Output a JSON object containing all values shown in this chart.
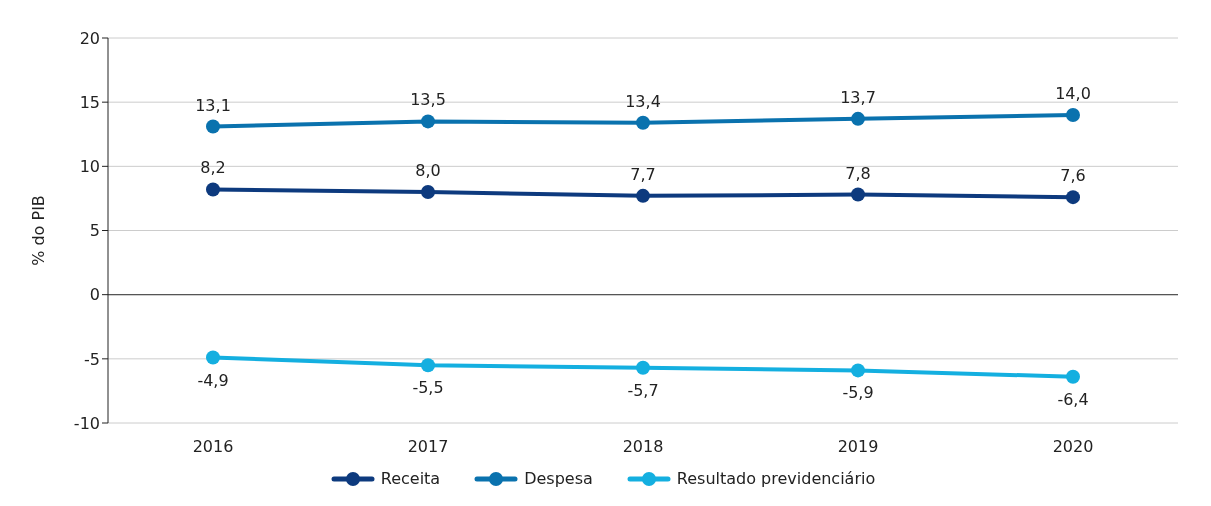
{
  "chart_data": {
    "type": "line",
    "ylabel": "% do PIB",
    "categories": [
      "2016",
      "2017",
      "2018",
      "2019",
      "2020"
    ],
    "series": [
      {
        "name": "Receita",
        "color": "#0d3a7e",
        "values": [
          8.2,
          8.0,
          7.7,
          7.8,
          7.6
        ],
        "value_labels": [
          "8,2",
          "8,0",
          "7,7",
          "7,8",
          "7,6"
        ]
      },
      {
        "name": "Despesa",
        "color": "#0a72ae",
        "values": [
          13.1,
          13.5,
          13.4,
          13.7,
          14.0
        ],
        "value_labels": [
          "13,1",
          "13,5",
          "13,4",
          "13,7",
          "14,0"
        ]
      },
      {
        "name": "Resultado previdenciário",
        "color": "#14afe0",
        "values": [
          -4.9,
          -5.5,
          -5.7,
          -5.9,
          -6.4
        ],
        "value_labels": [
          "-4,9",
          "-5,5",
          "-5,7",
          "-5,9",
          "-6,4"
        ]
      }
    ],
    "ylim": [
      -10,
      20
    ],
    "yticks": [
      -10,
      -5,
      0,
      5,
      10,
      15,
      20
    ],
    "ref_lines": [
      {
        "axis": "y",
        "value": 0,
        "color": "#555555"
      }
    ],
    "grid": "y",
    "legend": "bottom",
    "marker": "circle",
    "line_style": "solid"
  }
}
